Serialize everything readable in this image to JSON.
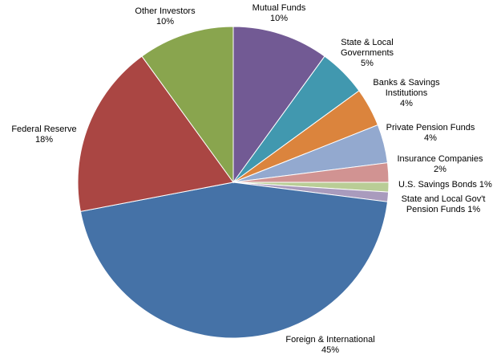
{
  "chart_data": {
    "type": "pie",
    "title": "",
    "slices": [
      {
        "key": "mutual",
        "label_lines": [
          "Mutual  Funds",
          "10%"
        ],
        "value": 10,
        "color": "#725A94"
      },
      {
        "key": "state_local_gov",
        "label_lines": [
          "State  & Local",
          "Governments",
          "5%"
        ],
        "value": 5,
        "color": "#4198AF"
      },
      {
        "key": "banks",
        "label_lines": [
          "Banks & Savings",
          "Institutions",
          "4%"
        ],
        "value": 4,
        "color": "#DB843D"
      },
      {
        "key": "private_pension",
        "label_lines": [
          "Private Pension  Funds",
          "4%"
        ],
        "value": 4,
        "color": "#93A9CF"
      },
      {
        "key": "insurance",
        "label_lines": [
          "Insurance Companies",
          "2%"
        ],
        "value": 2,
        "color": "#D19392"
      },
      {
        "key": "savings_bonds",
        "label_lines": [
          "U.S.  Savings Bonds 1%"
        ],
        "value": 1,
        "color": "#B9CD96"
      },
      {
        "key": "state_local_pension",
        "label_lines": [
          "State  and Local Gov't",
          "Pension  Funds    1%"
        ],
        "value": 1,
        "color": "#A99BBD"
      },
      {
        "key": "foreign",
        "label_lines": [
          "Foreign  & International",
          "45%"
        ],
        "value": 45,
        "color": "#4572A7"
      },
      {
        "key": "fed",
        "label_lines": [
          "Federal  Reserve",
          "18%"
        ],
        "value": 18,
        "color": "#AA4643"
      },
      {
        "key": "other",
        "label_lines": [
          "Other Investors",
          "10%"
        ],
        "value": 10,
        "color": "#89A54E"
      }
    ]
  }
}
